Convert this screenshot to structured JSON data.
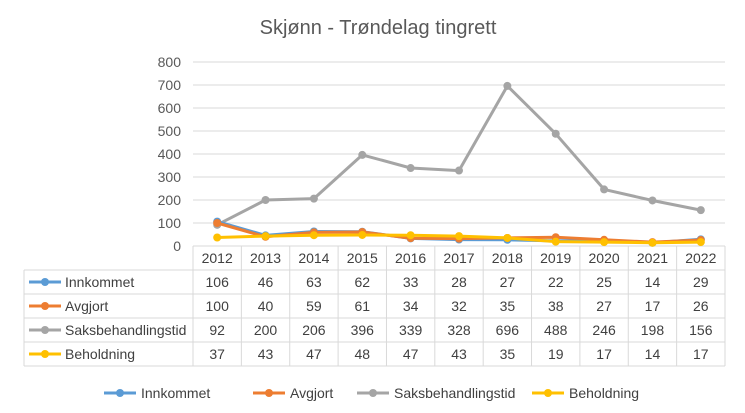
{
  "chart_data": {
    "type": "line",
    "title": "Skjønn - Trøndelag tingrett",
    "categories": [
      "2012",
      "2013",
      "2014",
      "2015",
      "2016",
      "2017",
      "2018",
      "2019",
      "2020",
      "2021",
      "2022"
    ],
    "series": [
      {
        "name": "Innkommet",
        "color": "#5B9BD5",
        "values": [
          106,
          46,
          63,
          62,
          33,
          28,
          27,
          22,
          25,
          14,
          29
        ]
      },
      {
        "name": "Avgjort",
        "color": "#ED7D31",
        "values": [
          100,
          40,
          59,
          61,
          34,
          32,
          35,
          38,
          27,
          17,
          26
        ]
      },
      {
        "name": "Saksbehandlingstid",
        "color": "#A5A5A5",
        "values": [
          92,
          200,
          206,
          396,
          339,
          328,
          696,
          488,
          246,
          198,
          156
        ]
      },
      {
        "name": "Beholdning",
        "color": "#FFC000",
        "values": [
          37,
          43,
          47,
          48,
          47,
          43,
          35,
          19,
          17,
          14,
          17
        ]
      }
    ],
    "yticks": [
      0,
      100,
      200,
      300,
      400,
      500,
      600,
      700,
      800
    ],
    "ylim": [
      0,
      800
    ],
    "grid": true,
    "legend": "bottom",
    "data_table": true
  }
}
